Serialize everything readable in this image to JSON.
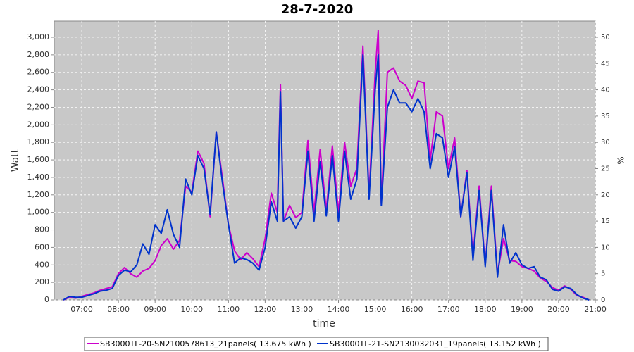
{
  "chart_data": {
    "type": "line",
    "title": "28-7-2020",
    "x_label": "time",
    "y_label": "Watt",
    "y2_label": "%",
    "x": [
      "06:30",
      "06:40",
      "06:50",
      "07:00",
      "07:10",
      "07:20",
      "07:30",
      "07:40",
      "07:50",
      "08:00",
      "08:10",
      "08:20",
      "08:30",
      "08:40",
      "08:50",
      "09:00",
      "09:10",
      "09:20",
      "09:30",
      "09:40",
      "09:50",
      "10:00",
      "10:10",
      "10:20",
      "10:30",
      "10:40",
      "10:50",
      "11:00",
      "11:10",
      "11:20",
      "11:30",
      "11:40",
      "11:50",
      "12:00",
      "12:10",
      "12:20",
      "12:25",
      "12:30",
      "12:40",
      "12:50",
      "13:00",
      "13:10",
      "13:20",
      "13:30",
      "13:40",
      "13:50",
      "14:00",
      "14:10",
      "14:20",
      "14:30",
      "14:40",
      "14:50",
      "15:00",
      "15:05",
      "15:10",
      "15:20",
      "15:30",
      "15:40",
      "15:50",
      "16:00",
      "16:10",
      "16:20",
      "16:30",
      "16:40",
      "16:50",
      "17:00",
      "17:10",
      "17:20",
      "17:30",
      "17:40",
      "17:50",
      "18:00",
      "18:10",
      "18:20",
      "18:30",
      "18:40",
      "18:50",
      "19:00",
      "19:10",
      "19:20",
      "19:30",
      "19:40",
      "19:50",
      "20:00",
      "20:10",
      "20:20",
      "20:30",
      "20:40",
      "20:50"
    ],
    "series": [
      {
        "name": "SB3000TL-20-SN2100578613_21panels( 13.675 kWh )",
        "color": "#cc00cc",
        "values": [
          0,
          30,
          20,
          40,
          60,
          80,
          110,
          130,
          150,
          300,
          370,
          300,
          260,
          330,
          360,
          450,
          620,
          700,
          580,
          680,
          1300,
          1230,
          1700,
          1560,
          950,
          1920,
          1400,
          860,
          560,
          460,
          540,
          470,
          380,
          700,
          1220,
          1000,
          2460,
          900,
          1080,
          940,
          1000,
          1820,
          1000,
          1720,
          1020,
          1760,
          1000,
          1800,
          1300,
          1500,
          2900,
          1200,
          2600,
          3080,
          1100,
          2600,
          2650,
          2500,
          2450,
          2300,
          2500,
          2480,
          1600,
          2150,
          2100,
          1500,
          1850,
          950,
          1480,
          500,
          1300,
          400,
          1300,
          300,
          700,
          450,
          440,
          380,
          360,
          330,
          250,
          210,
          140,
          110,
          160,
          120,
          50,
          30,
          0
        ]
      },
      {
        "name": "SB3000TL-21-SN2130032031_19panels( 13.152 kWh )",
        "color": "#0033cc",
        "values": [
          0,
          40,
          30,
          30,
          50,
          70,
          100,
          110,
          130,
          280,
          340,
          320,
          400,
          640,
          520,
          860,
          760,
          1030,
          750,
          600,
          1380,
          1200,
          1650,
          1500,
          980,
          1920,
          1350,
          860,
          420,
          480,
          460,
          420,
          340,
          600,
          1120,
          900,
          2380,
          900,
          950,
          820,
          950,
          1700,
          900,
          1580,
          960,
          1650,
          900,
          1700,
          1150,
          1380,
          2800,
          1150,
          2400,
          2800,
          1080,
          2200,
          2400,
          2250,
          2250,
          2150,
          2300,
          2150,
          1500,
          1900,
          1850,
          1400,
          1750,
          950,
          1450,
          450,
          1250,
          380,
          1250,
          260,
          860,
          420,
          540,
          400,
          360,
          380,
          260,
          230,
          120,
          100,
          150,
          130,
          60,
          20,
          0
        ]
      }
    ],
    "xlim": [
      "06:15",
      "21:00"
    ],
    "xticks": [
      "07:00",
      "08:00",
      "09:00",
      "10:00",
      "11:00",
      "12:00",
      "13:00",
      "14:00",
      "15:00",
      "16:00",
      "17:00",
      "18:00",
      "19:00",
      "20:00",
      "21:00"
    ],
    "ylim": [
      0,
      3185
    ],
    "yticks": [
      0,
      200,
      400,
      600,
      800,
      {
        "value": 1000,
        "label": "1,000"
      },
      {
        "value": 1200,
        "label": "1,200"
      },
      {
        "value": 1400,
        "label": "1,400"
      },
      {
        "value": 1600,
        "label": "1,600"
      },
      {
        "value": 1800,
        "label": "1,800"
      },
      {
        "value": 2000,
        "label": "2,000"
      },
      {
        "value": 2200,
        "label": "2,200"
      },
      {
        "value": 2400,
        "label": "2,400"
      },
      {
        "value": 2600,
        "label": "2,600"
      },
      {
        "value": 2800,
        "label": "2,800"
      },
      {
        "value": 3000,
        "label": "3,000"
      }
    ],
    "y2lim": [
      0,
      53.08
    ],
    "y2ticks": [
      0,
      5,
      10,
      15,
      20,
      25,
      30,
      35,
      40,
      45,
      50
    ],
    "grid": true
  }
}
